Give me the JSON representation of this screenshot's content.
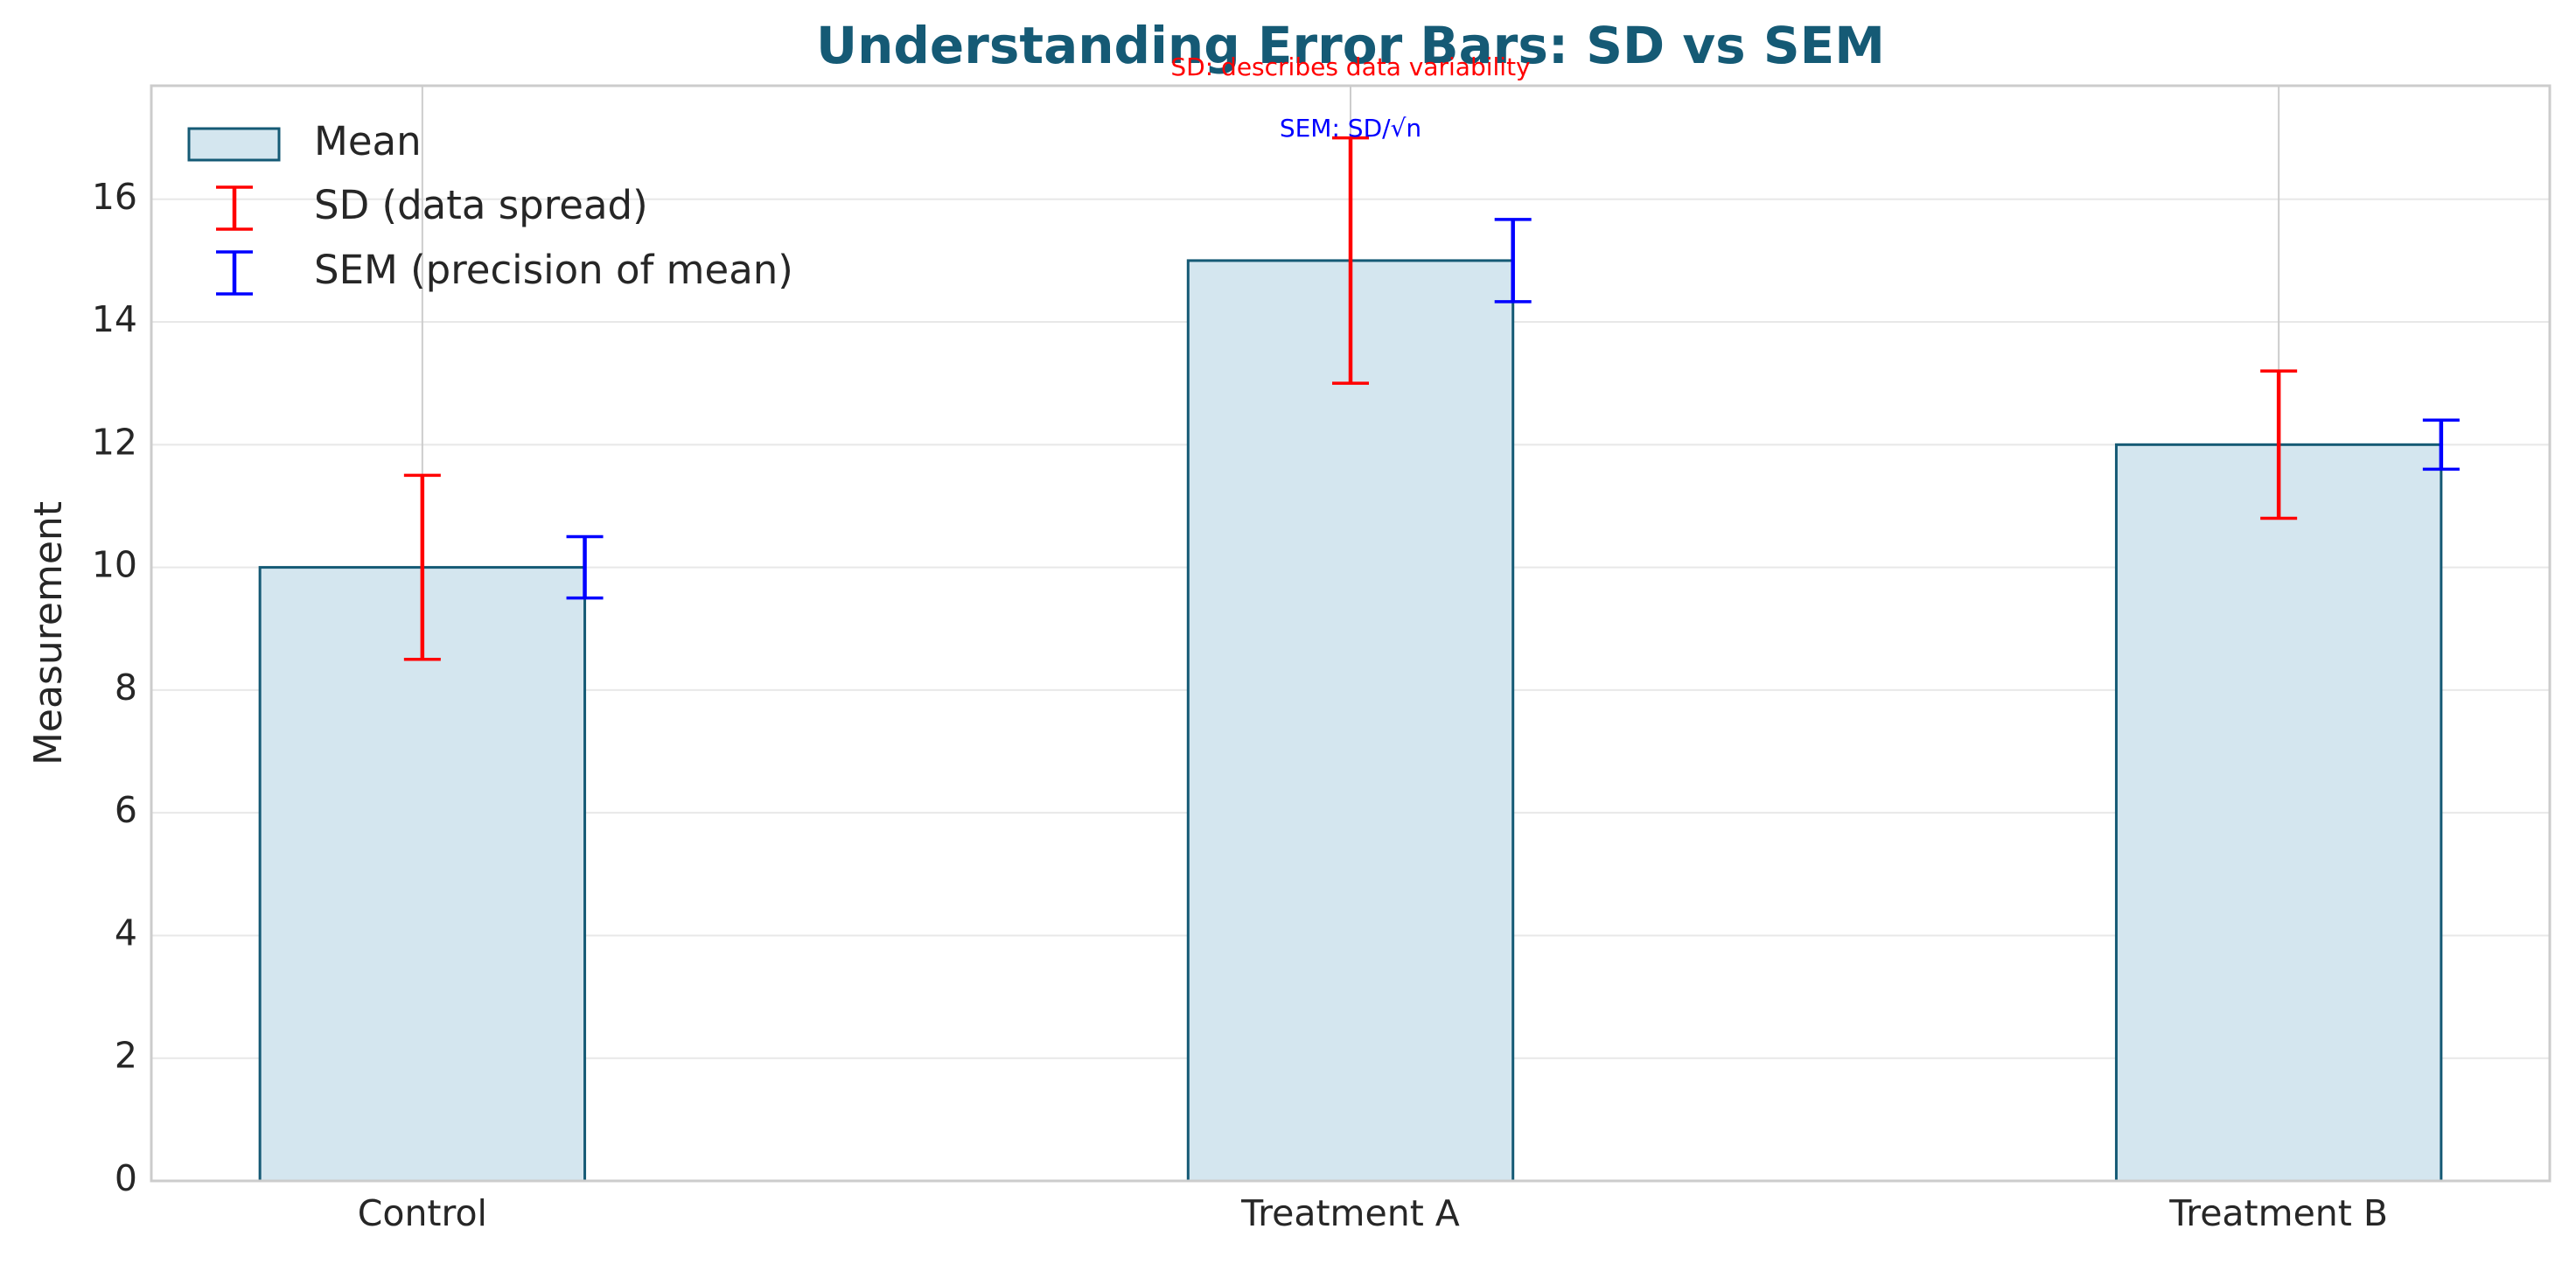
{
  "chart_data": {
    "type": "bar",
    "title": "Understanding Error Bars: SD vs SEM",
    "y_label": "Measurement",
    "categories": [
      "Control",
      "Treatment A",
      "Treatment B"
    ],
    "series": [
      {
        "name": "Mean",
        "color": "#d4e6ef",
        "edgecolor": "#155a75",
        "values": [
          10,
          15,
          12
        ]
      }
    ],
    "error_bars": [
      {
        "name": "SD (data spread)",
        "color": "#ff0000",
        "values": [
          1.5,
          2,
          1.2
        ]
      },
      {
        "name": "SEM (precision of mean)",
        "color": "#0000ff",
        "values": [
          0.5,
          0.67,
          0.4
        ]
      }
    ],
    "annotations": [
      {
        "text": "SD: describes data variability",
        "color": "#ff0000"
      },
      {
        "text": "SEM: SD/√n",
        "color": "#0000ff"
      }
    ],
    "ylim": [
      0,
      17.85
    ],
    "yticks": [
      0,
      2,
      4,
      6,
      8,
      10,
      12,
      14,
      16
    ],
    "grid": true,
    "legend": "upper-left"
  }
}
